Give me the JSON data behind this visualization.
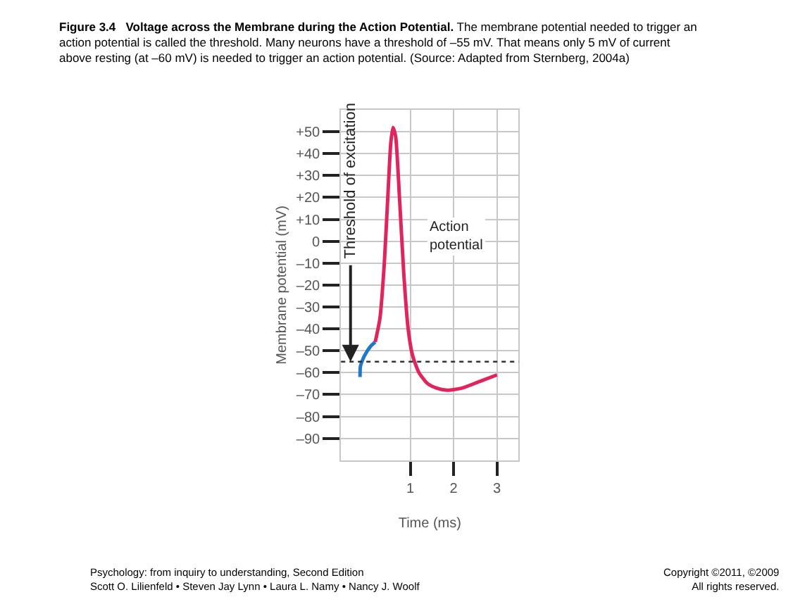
{
  "chart_data": {
    "type": "line",
    "title": "Figure 3.4   Voltage across the Membrane during the Action Potential.",
    "subtitle": "The membrane potential needed to trigger an action potential is called the threshold. Many neurons have a threshold of –55 mV. That means only 5 mV of current above resting (at –60 mV) is needed to trigger an action potential. (Source: Adapted from Sternberg, 2004a)",
    "xlabel": "Time (ms)",
    "ylabel": "Membrane potential (mV)",
    "series": [
      {
        "color": "#1f78c8",
        "x": [
          -0.16,
          -0.15,
          -0.05,
          0.08,
          0.19
        ],
        "values": [
          -62,
          -57,
          -52,
          -48,
          -46
        ]
      },
      {
        "color": "#e0245e",
        "x": [
          0.19,
          0.3,
          0.4,
          0.48,
          0.55,
          0.6,
          0.66,
          0.75,
          0.85,
          0.95,
          1.05,
          1.2,
          1.4,
          1.6,
          1.85,
          2.2,
          2.6,
          3.0
        ],
        "values": [
          -46,
          -35,
          -10,
          20,
          45,
          52,
          48,
          20,
          -15,
          -40,
          -52,
          -60,
          -65,
          -67,
          -68,
          -67,
          -64,
          -61
        ]
      }
    ],
    "xlim": [
      -0.6,
      3.5
    ],
    "xticks": [
      1,
      2,
      3
    ],
    "ylim": [
      -100,
      60
    ],
    "yticks": [
      {
        "value": 50,
        "label": "+50"
      },
      {
        "value": 40,
        "label": "+40"
      },
      {
        "value": 30,
        "label": "+30"
      },
      {
        "value": 20,
        "label": "+20"
      },
      {
        "value": 10,
        "label": "+10"
      },
      0,
      {
        "value": -10,
        "label": "–10"
      },
      {
        "value": -20,
        "label": "–20"
      },
      {
        "value": -30,
        "label": "–30"
      },
      {
        "value": -40,
        "label": "–40"
      },
      {
        "value": -50,
        "label": "–50"
      },
      {
        "value": -60,
        "label": "–60"
      },
      {
        "value": -70,
        "label": "–70"
      },
      {
        "value": -80,
        "label": "–80"
      },
      {
        "value": -90,
        "label": "–90"
      }
    ],
    "grid": true,
    "line_style": "solid",
    "marker": "none",
    "ref_lines": [
      {
        "axis": "y",
        "value": -55,
        "label": "Threshold of excitation",
        "line_style": "dotted",
        "color": "#333333"
      }
    ],
    "annotations": [
      "Action potential",
      "Psychology: from inquiry to understanding, Second Edition",
      "Scott O. Lilienfeld • Steven Jay Lynn • Laura L. Namy • Nancy J. Woolf",
      "Copyright ©2011, ©2009",
      "All rights reserved."
    ]
  }
}
